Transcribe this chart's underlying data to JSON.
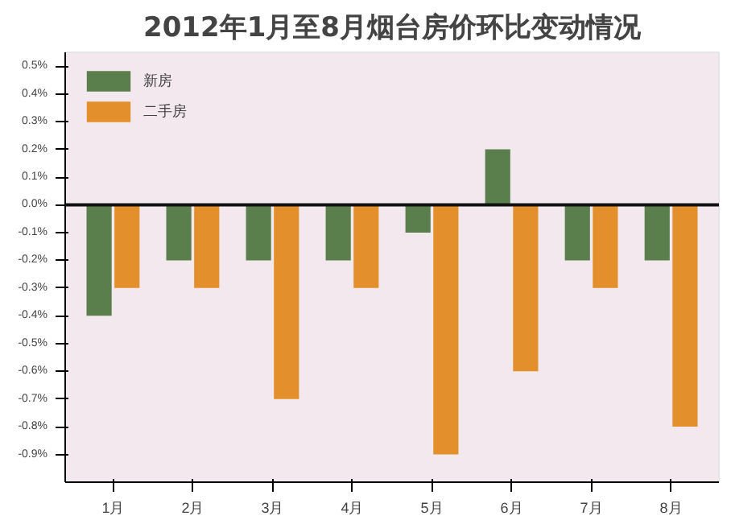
{
  "chart_data": {
    "type": "bar",
    "title": "2012年1月至8月烟台房价环比变动情况",
    "categories": [
      "1月",
      "2月",
      "3月",
      "4月",
      "5月",
      "6月",
      "7月",
      "8月"
    ],
    "series": [
      {
        "name": "新房",
        "color": "#5b7f4c",
        "values": [
          -0.4,
          -0.2,
          -0.2,
          -0.2,
          -0.1,
          0.2,
          -0.2,
          -0.2
        ]
      },
      {
        "name": "二手房",
        "color": "#e3902c",
        "values": [
          -0.3,
          -0.3,
          -0.7,
          -0.3,
          -0.9,
          -0.6,
          -0.3,
          -0.8
        ]
      }
    ],
    "ylim": [
      -1.0,
      0.55
    ],
    "yticks": [
      {
        "value": 0.5,
        "label": "0.5%"
      },
      {
        "value": 0.4,
        "label": "0.4%"
      },
      {
        "value": 0.3,
        "label": "0.3%"
      },
      {
        "value": 0.2,
        "label": "0.2%"
      },
      {
        "value": 0.1,
        "label": "0.1%"
      },
      {
        "value": 0,
        "label": "0.0%"
      },
      {
        "value": -0.1,
        "label": "-0.1%"
      },
      {
        "value": -0.2,
        "label": "-0.2%"
      },
      {
        "value": -0.3,
        "label": "-0.3%"
      },
      {
        "value": -0.4,
        "label": "-0.4%"
      },
      {
        "value": -0.5,
        "label": "-0.5%"
      },
      {
        "value": -0.6,
        "label": "-0.6%"
      },
      {
        "value": -0.7,
        "label": "-0.7%"
      },
      {
        "value": -0.8,
        "label": "-0.8%"
      },
      {
        "value": -0.9,
        "label": "-0.9%"
      }
    ],
    "ref_lines": [
      {
        "axis": "y",
        "value": 0,
        "color": "#111111"
      }
    ],
    "grid": false,
    "legend": "top left"
  }
}
